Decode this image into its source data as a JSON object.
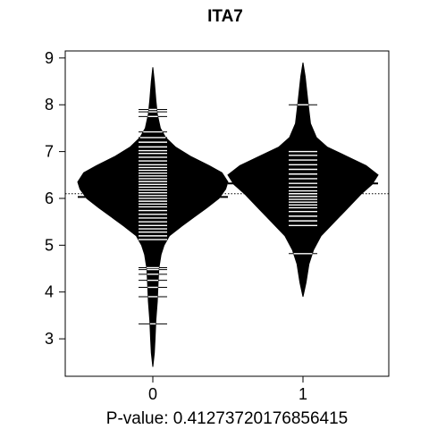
{
  "chart_data": {
    "type": "beanplot",
    "title": "ITA7",
    "xlabel": "P-value: 0.41273720176856415",
    "categories": [
      "0",
      "1"
    ],
    "yticks": [
      3,
      4,
      5,
      6,
      7,
      8,
      9
    ],
    "ylim": [
      2.2,
      9.15
    ],
    "overall_mean": 6.1,
    "group_means": [
      6.03,
      6.32
    ],
    "beans": [
      {
        "category": "0",
        "range": [
          2.4,
          8.8
        ],
        "density": [
          [
            2.4,
            0.0
          ],
          [
            2.7,
            0.02
          ],
          [
            3.0,
            0.03
          ],
          [
            3.4,
            0.04
          ],
          [
            3.8,
            0.06
          ],
          [
            4.2,
            0.07
          ],
          [
            4.5,
            0.08
          ],
          [
            4.8,
            0.11
          ],
          [
            5.0,
            0.15
          ],
          [
            5.2,
            0.22
          ],
          [
            5.4,
            0.38
          ],
          [
            5.6,
            0.55
          ],
          [
            5.8,
            0.72
          ],
          [
            6.0,
            0.88
          ],
          [
            6.2,
            0.97
          ],
          [
            6.35,
            1.0
          ],
          [
            6.55,
            0.92
          ],
          [
            6.7,
            0.75
          ],
          [
            6.9,
            0.5
          ],
          [
            7.1,
            0.3
          ],
          [
            7.3,
            0.17
          ],
          [
            7.5,
            0.1
          ],
          [
            7.8,
            0.06
          ],
          [
            8.1,
            0.04
          ],
          [
            8.5,
            0.02
          ],
          [
            8.8,
            0.0
          ]
        ],
        "observations": [
          3.32,
          3.9,
          4.1,
          4.25,
          4.38,
          4.48,
          4.52,
          5.12,
          5.2,
          5.28,
          5.35,
          5.42,
          5.5,
          5.58,
          5.66,
          5.74,
          5.82,
          5.88,
          5.94,
          6.0,
          6.06,
          6.12,
          6.18,
          6.24,
          6.3,
          6.36,
          6.42,
          6.48,
          6.54,
          6.6,
          6.66,
          6.72,
          6.8,
          6.88,
          6.96,
          7.02,
          7.1,
          7.2,
          7.3,
          7.42,
          7.75,
          7.85,
          7.9
        ]
      },
      {
        "category": "1",
        "range": [
          3.9,
          8.9
        ],
        "density": [
          [
            3.9,
            0.0
          ],
          [
            4.2,
            0.04
          ],
          [
            4.6,
            0.08
          ],
          [
            4.9,
            0.14
          ],
          [
            5.2,
            0.24
          ],
          [
            5.5,
            0.42
          ],
          [
            5.8,
            0.6
          ],
          [
            6.1,
            0.78
          ],
          [
            6.3,
            0.92
          ],
          [
            6.5,
            1.0
          ],
          [
            6.7,
            0.84
          ],
          [
            6.9,
            0.58
          ],
          [
            7.1,
            0.32
          ],
          [
            7.3,
            0.18
          ],
          [
            7.6,
            0.1
          ],
          [
            8.0,
            0.07
          ],
          [
            8.3,
            0.05
          ],
          [
            8.6,
            0.03
          ],
          [
            8.9,
            0.0
          ]
        ],
        "observations": [
          4.82,
          5.42,
          5.52,
          5.62,
          5.72,
          5.8,
          5.86,
          5.92,
          5.98,
          6.04,
          6.1,
          6.16,
          6.24,
          6.32,
          6.42,
          6.52,
          6.62,
          6.72,
          6.82,
          6.92,
          7.0,
          8.0
        ]
      }
    ]
  },
  "colors": {
    "bean_fill": "#000000",
    "observation_line": "#ffffff",
    "background": "#ffffff"
  }
}
